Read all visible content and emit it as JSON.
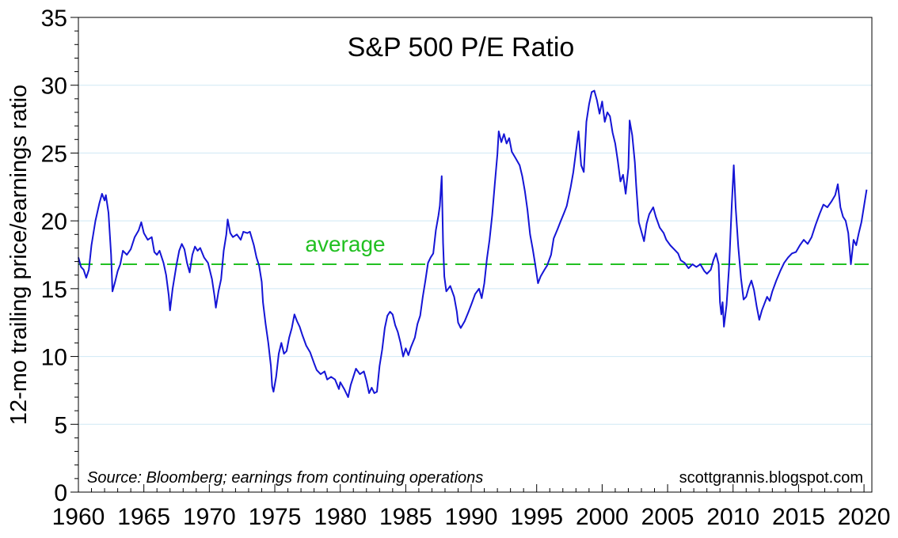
{
  "chart_data": {
    "type": "line",
    "title": "S&P 500 P/E Ratio",
    "ylabel": "12-mo trailing price/earnings ratio",
    "xlabel": "",
    "xlim": [
      1960,
      2020.6
    ],
    "ylim": [
      0,
      35
    ],
    "x_ticks": [
      "1960",
      "1965",
      "1970",
      "1975",
      "1980",
      "1985",
      "1990",
      "1995",
      "2000",
      "2005",
      "2010",
      "2015",
      "2020"
    ],
    "y_ticks": [
      "0",
      "5",
      "10",
      "15",
      "20",
      "25",
      "30",
      "35"
    ],
    "grid": "horizontal",
    "colors": {
      "series": "#1515d6",
      "average": "#22c022",
      "grid": "#cfe8f4",
      "axis": "#000000"
    },
    "annotations": {
      "average_label": "average",
      "source": "Source: Bloomberg; earnings from continuing operations",
      "credit": "scottgrannis.blogspot.com"
    },
    "average": 16.8,
    "series": [
      {
        "points": [
          [
            1960.0,
            17.3
          ],
          [
            1960.2,
            16.6
          ],
          [
            1960.4,
            16.4
          ],
          [
            1960.6,
            15.8
          ],
          [
            1960.8,
            16.4
          ],
          [
            1961.0,
            18.2
          ],
          [
            1961.3,
            20.0
          ],
          [
            1961.6,
            21.3
          ],
          [
            1961.8,
            22.0
          ],
          [
            1962.0,
            21.5
          ],
          [
            1962.1,
            21.9
          ],
          [
            1962.3,
            20.6
          ],
          [
            1962.5,
            17.5
          ],
          [
            1962.6,
            14.8
          ],
          [
            1962.8,
            15.5
          ],
          [
            1963.0,
            16.3
          ],
          [
            1963.2,
            16.8
          ],
          [
            1963.4,
            17.8
          ],
          [
            1963.7,
            17.5
          ],
          [
            1964.0,
            17.9
          ],
          [
            1964.3,
            18.8
          ],
          [
            1964.6,
            19.3
          ],
          [
            1964.8,
            19.9
          ],
          [
            1965.0,
            19.1
          ],
          [
            1965.3,
            18.6
          ],
          [
            1965.6,
            18.8
          ],
          [
            1965.8,
            17.7
          ],
          [
            1966.0,
            17.5
          ],
          [
            1966.2,
            17.8
          ],
          [
            1966.5,
            16.9
          ],
          [
            1966.7,
            16.0
          ],
          [
            1966.9,
            14.5
          ],
          [
            1967.0,
            13.4
          ],
          [
            1967.2,
            15.0
          ],
          [
            1967.5,
            16.8
          ],
          [
            1967.7,
            17.8
          ],
          [
            1967.9,
            18.3
          ],
          [
            1968.1,
            17.9
          ],
          [
            1968.3,
            16.9
          ],
          [
            1968.5,
            16.2
          ],
          [
            1968.7,
            17.5
          ],
          [
            1968.9,
            18.1
          ],
          [
            1969.1,
            17.8
          ],
          [
            1969.3,
            18.0
          ],
          [
            1969.6,
            17.3
          ],
          [
            1969.9,
            16.9
          ],
          [
            1970.2,
            15.7
          ],
          [
            1970.4,
            14.4
          ],
          [
            1970.5,
            13.6
          ],
          [
            1970.7,
            14.8
          ],
          [
            1970.9,
            15.7
          ],
          [
            1971.1,
            17.8
          ],
          [
            1971.3,
            19.0
          ],
          [
            1971.4,
            20.1
          ],
          [
            1971.6,
            19.1
          ],
          [
            1971.8,
            18.8
          ],
          [
            1972.1,
            19.0
          ],
          [
            1972.4,
            18.6
          ],
          [
            1972.6,
            19.2
          ],
          [
            1972.9,
            19.1
          ],
          [
            1973.1,
            19.2
          ],
          [
            1973.4,
            18.2
          ],
          [
            1973.6,
            17.3
          ],
          [
            1973.8,
            16.7
          ],
          [
            1974.0,
            15.5
          ],
          [
            1974.1,
            14.0
          ],
          [
            1974.3,
            12.4
          ],
          [
            1974.5,
            11.0
          ],
          [
            1974.7,
            9.3
          ],
          [
            1974.8,
            7.8
          ],
          [
            1974.9,
            7.4
          ],
          [
            1975.1,
            8.5
          ],
          [
            1975.3,
            10.2
          ],
          [
            1975.5,
            11.0
          ],
          [
            1975.7,
            10.2
          ],
          [
            1975.9,
            10.4
          ],
          [
            1976.1,
            11.4
          ],
          [
            1976.3,
            12.1
          ],
          [
            1976.5,
            13.1
          ],
          [
            1976.7,
            12.6
          ],
          [
            1976.9,
            12.2
          ],
          [
            1977.1,
            11.6
          ],
          [
            1977.4,
            10.8
          ],
          [
            1977.7,
            10.3
          ],
          [
            1978.0,
            9.5
          ],
          [
            1978.2,
            9.0
          ],
          [
            1978.5,
            8.7
          ],
          [
            1978.8,
            8.9
          ],
          [
            1979.0,
            8.3
          ],
          [
            1979.3,
            8.5
          ],
          [
            1979.6,
            8.3
          ],
          [
            1979.9,
            7.6
          ],
          [
            1980.0,
            8.1
          ],
          [
            1980.3,
            7.6
          ],
          [
            1980.6,
            7.0
          ],
          [
            1980.8,
            7.9
          ],
          [
            1981.0,
            8.5
          ],
          [
            1981.2,
            9.1
          ],
          [
            1981.5,
            8.7
          ],
          [
            1981.8,
            8.9
          ],
          [
            1982.0,
            8.2
          ],
          [
            1982.2,
            7.3
          ],
          [
            1982.4,
            7.7
          ],
          [
            1982.6,
            7.3
          ],
          [
            1982.8,
            7.4
          ],
          [
            1983.0,
            9.3
          ],
          [
            1983.2,
            10.5
          ],
          [
            1983.4,
            12.1
          ],
          [
            1983.6,
            13.0
          ],
          [
            1983.8,
            13.3
          ],
          [
            1984.0,
            13.1
          ],
          [
            1984.2,
            12.3
          ],
          [
            1984.4,
            11.8
          ],
          [
            1984.6,
            11.0
          ],
          [
            1984.8,
            10.0
          ],
          [
            1985.0,
            10.6
          ],
          [
            1985.2,
            10.1
          ],
          [
            1985.4,
            10.7
          ],
          [
            1985.7,
            11.4
          ],
          [
            1985.9,
            12.4
          ],
          [
            1986.1,
            13.0
          ],
          [
            1986.3,
            14.4
          ],
          [
            1986.5,
            15.6
          ],
          [
            1986.7,
            16.9
          ],
          [
            1986.9,
            17.3
          ],
          [
            1987.1,
            17.6
          ],
          [
            1987.3,
            19.3
          ],
          [
            1987.5,
            20.4
          ],
          [
            1987.6,
            21.1
          ],
          [
            1987.75,
            23.3
          ],
          [
            1987.85,
            18.4
          ],
          [
            1987.95,
            15.9
          ],
          [
            1988.1,
            14.8
          ],
          [
            1988.4,
            15.2
          ],
          [
            1988.7,
            14.4
          ],
          [
            1988.9,
            13.3
          ],
          [
            1989.0,
            12.5
          ],
          [
            1989.2,
            12.1
          ],
          [
            1989.5,
            12.6
          ],
          [
            1989.8,
            13.3
          ],
          [
            1990.0,
            13.8
          ],
          [
            1990.3,
            14.6
          ],
          [
            1990.6,
            15.0
          ],
          [
            1990.8,
            14.3
          ],
          [
            1991.0,
            15.4
          ],
          [
            1991.2,
            17.2
          ],
          [
            1991.4,
            18.6
          ],
          [
            1991.6,
            20.4
          ],
          [
            1991.8,
            22.7
          ],
          [
            1992.0,
            24.9
          ],
          [
            1992.1,
            26.6
          ],
          [
            1992.3,
            25.8
          ],
          [
            1992.5,
            26.4
          ],
          [
            1992.7,
            25.7
          ],
          [
            1992.9,
            26.1
          ],
          [
            1993.1,
            25.1
          ],
          [
            1993.4,
            24.6
          ],
          [
            1993.7,
            24.1
          ],
          [
            1993.9,
            23.3
          ],
          [
            1994.1,
            22.2
          ],
          [
            1994.3,
            20.8
          ],
          [
            1994.5,
            19.0
          ],
          [
            1994.7,
            17.9
          ],
          [
            1994.9,
            16.7
          ],
          [
            1995.1,
            15.4
          ],
          [
            1995.3,
            15.9
          ],
          [
            1995.6,
            16.4
          ],
          [
            1995.8,
            16.7
          ],
          [
            1996.1,
            17.5
          ],
          [
            1996.3,
            18.7
          ],
          [
            1996.6,
            19.4
          ],
          [
            1996.8,
            19.9
          ],
          [
            1997.1,
            20.6
          ],
          [
            1997.3,
            21.1
          ],
          [
            1997.6,
            22.5
          ],
          [
            1997.8,
            23.6
          ],
          [
            1998.0,
            25.1
          ],
          [
            1998.2,
            26.6
          ],
          [
            1998.4,
            24.1
          ],
          [
            1998.6,
            23.6
          ],
          [
            1998.8,
            27.3
          ],
          [
            1999.0,
            28.6
          ],
          [
            1999.2,
            29.5
          ],
          [
            1999.4,
            29.6
          ],
          [
            1999.6,
            28.9
          ],
          [
            1999.8,
            27.9
          ],
          [
            2000.0,
            28.8
          ],
          [
            2000.2,
            27.3
          ],
          [
            2000.4,
            28.0
          ],
          [
            2000.6,
            27.7
          ],
          [
            2000.8,
            26.5
          ],
          [
            2001.0,
            25.7
          ],
          [
            2001.2,
            24.4
          ],
          [
            2001.4,
            22.9
          ],
          [
            2001.6,
            23.4
          ],
          [
            2001.8,
            22.0
          ],
          [
            2002.0,
            23.9
          ],
          [
            2002.1,
            27.4
          ],
          [
            2002.3,
            26.3
          ],
          [
            2002.5,
            24.3
          ],
          [
            2002.6,
            22.6
          ],
          [
            2002.8,
            19.9
          ],
          [
            2003.0,
            19.2
          ],
          [
            2003.2,
            18.5
          ],
          [
            2003.4,
            19.8
          ],
          [
            2003.6,
            20.5
          ],
          [
            2003.9,
            21.0
          ],
          [
            2004.1,
            20.3
          ],
          [
            2004.4,
            19.5
          ],
          [
            2004.7,
            19.1
          ],
          [
            2004.9,
            18.6
          ],
          [
            2005.2,
            18.2
          ],
          [
            2005.5,
            17.9
          ],
          [
            2005.8,
            17.6
          ],
          [
            2006.0,
            17.1
          ],
          [
            2006.3,
            16.9
          ],
          [
            2006.6,
            16.5
          ],
          [
            2006.9,
            16.8
          ],
          [
            2007.2,
            16.6
          ],
          [
            2007.5,
            16.8
          ],
          [
            2007.8,
            16.3
          ],
          [
            2008.0,
            16.1
          ],
          [
            2008.3,
            16.4
          ],
          [
            2008.5,
            17.1
          ],
          [
            2008.7,
            17.6
          ],
          [
            2008.9,
            16.8
          ],
          [
            2009.0,
            14.0
          ],
          [
            2009.1,
            13.1
          ],
          [
            2009.2,
            14.0
          ],
          [
            2009.3,
            12.2
          ],
          [
            2009.5,
            13.8
          ],
          [
            2009.7,
            16.7
          ],
          [
            2009.9,
            21.2
          ],
          [
            2010.05,
            24.1
          ],
          [
            2010.2,
            21.0
          ],
          [
            2010.4,
            18.1
          ],
          [
            2010.6,
            15.8
          ],
          [
            2010.8,
            14.2
          ],
          [
            2011.0,
            14.4
          ],
          [
            2011.2,
            15.1
          ],
          [
            2011.4,
            15.6
          ],
          [
            2011.6,
            14.9
          ],
          [
            2011.8,
            13.7
          ],
          [
            2012.0,
            12.7
          ],
          [
            2012.2,
            13.4
          ],
          [
            2012.4,
            13.9
          ],
          [
            2012.6,
            14.4
          ],
          [
            2012.8,
            14.1
          ],
          [
            2013.0,
            14.8
          ],
          [
            2013.3,
            15.6
          ],
          [
            2013.6,
            16.3
          ],
          [
            2013.9,
            16.9
          ],
          [
            2014.2,
            17.3
          ],
          [
            2014.5,
            17.6
          ],
          [
            2014.8,
            17.7
          ],
          [
            2015.1,
            18.2
          ],
          [
            2015.4,
            18.6
          ],
          [
            2015.7,
            18.3
          ],
          [
            2016.0,
            18.8
          ],
          [
            2016.3,
            19.7
          ],
          [
            2016.6,
            20.5
          ],
          [
            2016.9,
            21.2
          ],
          [
            2017.2,
            21.0
          ],
          [
            2017.5,
            21.4
          ],
          [
            2017.8,
            21.9
          ],
          [
            2018.0,
            22.7
          ],
          [
            2018.2,
            21.0
          ],
          [
            2018.4,
            20.3
          ],
          [
            2018.6,
            20.0
          ],
          [
            2018.8,
            19.1
          ],
          [
            2019.0,
            16.8
          ],
          [
            2019.2,
            18.6
          ],
          [
            2019.4,
            18.2
          ],
          [
            2019.6,
            19.1
          ],
          [
            2019.8,
            19.9
          ],
          [
            2020.0,
            21.1
          ],
          [
            2020.2,
            22.3
          ]
        ]
      }
    ]
  }
}
